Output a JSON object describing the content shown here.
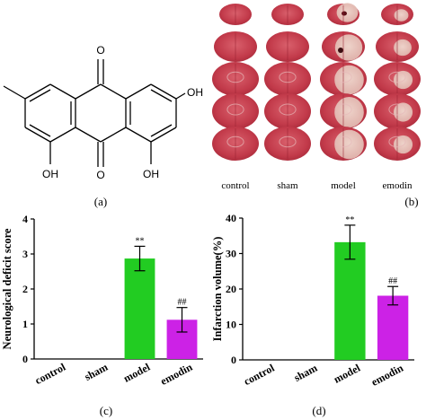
{
  "panel_a": {
    "caption": "(a)",
    "oh_right": "OH",
    "oh_bottom_left": "OH",
    "oh_bottom_right": "OH",
    "carbonyl_top": "O",
    "carbonyl_bottom": "O"
  },
  "panel_b": {
    "caption": "(b)",
    "columns": [
      "control",
      "sham",
      "model",
      "emodin"
    ]
  },
  "chart_data": [
    {
      "type": "bar",
      "panel_label": "(c)",
      "categories": [
        "control",
        "sham",
        "model",
        "emodin"
      ],
      "values": [
        0,
        0,
        2.87,
        1.12
      ],
      "errors": [
        0,
        0,
        0.35,
        0.35
      ],
      "significance": [
        "",
        "",
        "**",
        "##"
      ],
      "colors": [
        "#2aa82a",
        "#2aa82a",
        "#22cc22",
        "#cc22e6"
      ],
      "xlabel": "",
      "ylabel": "Neurological deficit score",
      "ylim": [
        0,
        4
      ],
      "yticks": [
        0,
        1,
        2,
        3,
        4
      ],
      "grid": false
    },
    {
      "type": "bar",
      "panel_label": "(d)",
      "categories": [
        "control",
        "sham",
        "model",
        "emodin"
      ],
      "values": [
        0,
        0,
        33.2,
        18.1
      ],
      "errors": [
        0,
        0,
        4.8,
        2.6
      ],
      "significance": [
        "",
        "",
        "**",
        "##"
      ],
      "colors": [
        "#2aa82a",
        "#2aa82a",
        "#22cc22",
        "#cc22e6"
      ],
      "xlabel": "",
      "ylabel": "Infarction volume(%)",
      "ylim": [
        0,
        40
      ],
      "yticks": [
        0,
        10,
        20,
        30,
        40
      ],
      "grid": false
    }
  ]
}
